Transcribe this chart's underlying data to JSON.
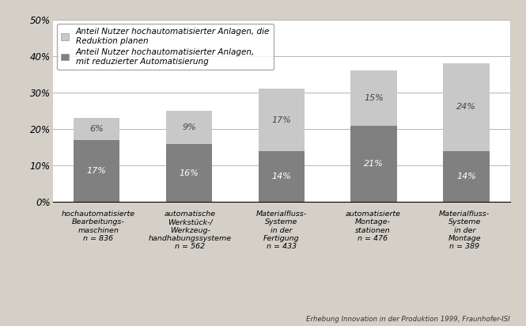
{
  "categories": [
    "hochautomatisierte\nBearbeitungs-\nmaschinen\nn = 836",
    "automatische\nWerkstück-/\nWerkzeug-\nhandhabungssysteme\nn = 562",
    "Materialfluss-\nSysteme\nin der\nFertigung\nn = 433",
    "automatisierte\nMontage-\nstationen\nn = 476",
    "Materialfluss-\nSysteme\nin der\nMontage\nn = 389"
  ],
  "bottom_values": [
    17,
    16,
    14,
    21,
    14
  ],
  "top_values": [
    6,
    9,
    17,
    15,
    24
  ],
  "bottom_labels": [
    "17%",
    "16%",
    "14%",
    "21%",
    "14%"
  ],
  "top_labels": [
    "6%",
    "9%",
    "17%",
    "15%",
    "24%"
  ],
  "bottom_color": "#808080",
  "top_color": "#c8c8c8",
  "legend_label1": "Anteil Nutzer hochautomatisierter Anlagen, die\nReduktion planen",
  "legend_label2": "Anteil Nutzer hochautomatisierter Anlagen,\nmit reduzierter Automatisierung",
  "yticks": [
    0,
    10,
    20,
    30,
    40,
    50
  ],
  "ytick_labels": [
    "0%",
    "10%",
    "20%",
    "30%",
    "40%",
    "50%"
  ],
  "ylim": [
    0,
    50
  ],
  "footnote": "Erhebung Innovation in der Produktion 1999, Fraunhofer-ISI",
  "background_color": "#d4d0c8",
  "plot_bg_color": "#ffffff",
  "bar_width": 0.5
}
